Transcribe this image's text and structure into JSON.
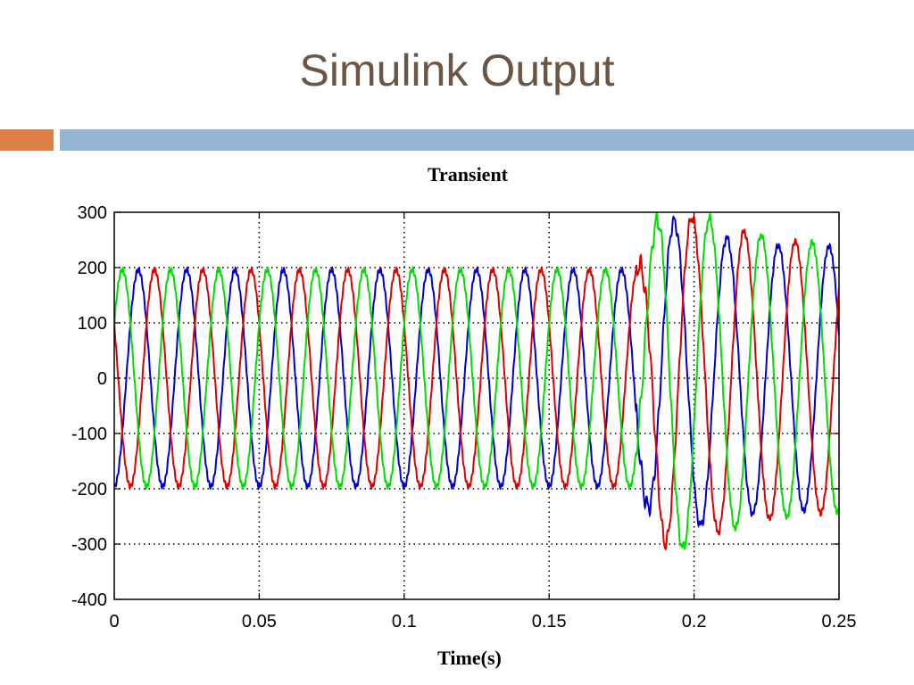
{
  "slide": {
    "title": "Simulink Output"
  },
  "colors": {
    "accent_left": "#dd8047",
    "accent_band": "#94b6d2"
  },
  "chart_data": {
    "type": "line",
    "title": "Transient",
    "xlabel": "Time(s)",
    "ylabel": "",
    "xlim": [
      0,
      0.25
    ],
    "ylim": [
      -400,
      300
    ],
    "xticks": [
      0,
      0.05,
      0.1,
      0.15,
      0.2,
      0.25
    ],
    "xtick_labels": [
      "0",
      "0.05",
      "0.1",
      "0.15",
      "0.2",
      "0.25"
    ],
    "yticks": [
      300,
      200,
      100,
      0,
      -100,
      -200,
      -300,
      -400
    ],
    "ytick_labels": [
      "300",
      "200",
      "100",
      "0",
      "-100",
      "-200",
      "-300",
      "-400"
    ],
    "grid": true,
    "legend": "none",
    "frequency_hz": 60,
    "steady_amplitude": 196,
    "disturbance_time": 0.18,
    "series": [
      {
        "color": "#0000cc",
        "phase_deg": -90,
        "x": [
          0.18,
          0.19,
          0.2,
          0.21,
          0.22,
          0.23,
          0.24,
          0.25
        ],
        "amplitude": [
          196,
          290,
          270,
          255,
          245,
          240,
          240,
          238
        ]
      },
      {
        "color": "#dd0000",
        "phase_deg": 150,
        "x": [
          0.18,
          0.19,
          0.2,
          0.21,
          0.22,
          0.23,
          0.24,
          0.25
        ],
        "amplitude": [
          196,
          300,
          290,
          275,
          262,
          250,
          245,
          242
        ]
      },
      {
        "color": "#00dd00",
        "phase_deg": 30,
        "x": [
          0.18,
          0.19,
          0.2,
          0.21,
          0.22,
          0.23,
          0.24,
          0.25
        ],
        "amplitude": [
          196,
          320,
          300,
          278,
          262,
          252,
          246,
          242
        ]
      }
    ]
  }
}
